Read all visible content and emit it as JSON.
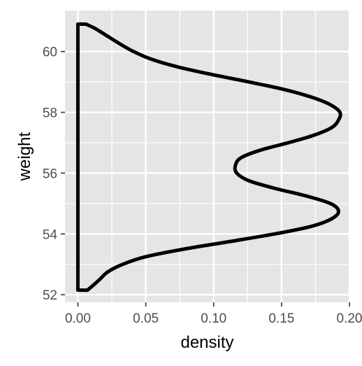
{
  "chart_data": {
    "type": "area",
    "orientation": "horizontal",
    "title": "",
    "xlabel": "density",
    "ylabel": "weight",
    "xlim": [
      -0.0095,
      0.2
    ],
    "ylim": [
      51.75,
      61.35
    ],
    "x_ticks": [
      0.0,
      0.05,
      0.1,
      0.15,
      0.2
    ],
    "x_tick_labels": [
      "0.00",
      "0.05",
      "0.10",
      "0.15",
      "0.20"
    ],
    "y_ticks": [
      52,
      54,
      56,
      58,
      60
    ],
    "y_tick_labels": [
      "52",
      "54",
      "56",
      "58",
      "60"
    ],
    "grid": true,
    "legend": "none",
    "colors": {
      "panel_background": "#e5e5e5",
      "grid": "#ffffff",
      "curve": "#000000",
      "fill": "none"
    },
    "series": [
      {
        "name": "",
        "points": [
          {
            "weight": 52.15,
            "density": 0.007
          },
          {
            "weight": 52.3,
            "density": 0.011
          },
          {
            "weight": 52.5,
            "density": 0.016
          },
          {
            "weight": 52.75,
            "density": 0.022
          },
          {
            "weight": 53.0,
            "density": 0.033
          },
          {
            "weight": 53.25,
            "density": 0.05
          },
          {
            "weight": 53.5,
            "density": 0.078
          },
          {
            "weight": 53.75,
            "density": 0.112
          },
          {
            "weight": 54.0,
            "density": 0.145
          },
          {
            "weight": 54.25,
            "density": 0.172
          },
          {
            "weight": 54.5,
            "density": 0.187
          },
          {
            "weight": 54.75,
            "density": 0.192
          },
          {
            "weight": 55.0,
            "density": 0.186
          },
          {
            "weight": 55.25,
            "density": 0.168
          },
          {
            "weight": 55.5,
            "density": 0.145
          },
          {
            "weight": 55.75,
            "density": 0.126
          },
          {
            "weight": 56.0,
            "density": 0.117
          },
          {
            "weight": 56.25,
            "density": 0.116
          },
          {
            "weight": 56.5,
            "density": 0.12
          },
          {
            "weight": 56.75,
            "density": 0.134
          },
          {
            "weight": 57.0,
            "density": 0.155
          },
          {
            "weight": 57.25,
            "density": 0.174
          },
          {
            "weight": 57.5,
            "density": 0.187
          },
          {
            "weight": 57.75,
            "density": 0.192
          },
          {
            "weight": 58.0,
            "density": 0.193
          },
          {
            "weight": 58.25,
            "density": 0.186
          },
          {
            "weight": 58.5,
            "density": 0.172
          },
          {
            "weight": 58.75,
            "density": 0.152
          },
          {
            "weight": 59.0,
            "density": 0.126
          },
          {
            "weight": 59.25,
            "density": 0.098
          },
          {
            "weight": 59.5,
            "density": 0.073
          },
          {
            "weight": 59.75,
            "density": 0.054
          },
          {
            "weight": 60.0,
            "density": 0.041
          },
          {
            "weight": 60.25,
            "density": 0.031
          },
          {
            "weight": 60.5,
            "density": 0.022
          },
          {
            "weight": 60.75,
            "density": 0.013
          },
          {
            "weight": 60.9,
            "density": 0.006
          }
        ]
      }
    ]
  }
}
